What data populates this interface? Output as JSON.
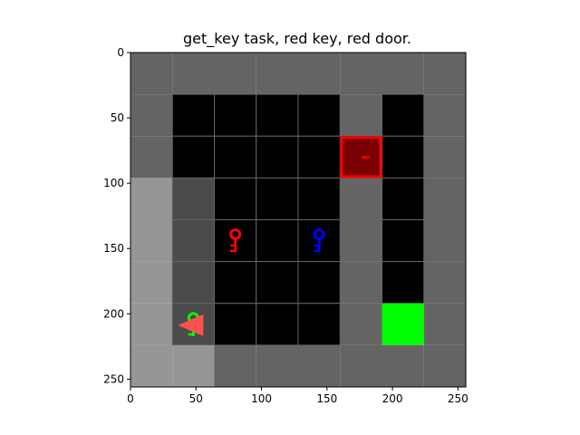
{
  "title": "get_key task, red key, red door.",
  "axes": {
    "x_ticks": [
      0,
      50,
      100,
      150,
      200,
      250
    ],
    "y_ticks": [
      0,
      50,
      100,
      150,
      200,
      250
    ],
    "xlim": [
      0,
      256
    ],
    "ylim": [
      256,
      0
    ]
  },
  "grid": {
    "cell_size": 32,
    "cols": 8,
    "rows": 8,
    "tile_colors": {
      "outer_wall": "#646464",
      "floor": "#000000",
      "visible_floor": "#4b4b4b",
      "visible_wall": "#969696",
      "grid_line": "#646464",
      "goal": "#00ff00"
    },
    "floor_cells": [
      [
        1,
        1
      ],
      [
        2,
        1
      ],
      [
        3,
        1
      ],
      [
        4,
        1
      ],
      [
        6,
        1
      ],
      [
        1,
        2
      ],
      [
        2,
        2
      ],
      [
        3,
        2
      ],
      [
        4,
        2
      ],
      [
        6,
        2
      ],
      [
        1,
        3
      ],
      [
        2,
        3
      ],
      [
        3,
        3
      ],
      [
        4,
        3
      ],
      [
        6,
        3
      ],
      [
        1,
        4
      ],
      [
        2,
        4
      ],
      [
        3,
        4
      ],
      [
        4,
        4
      ],
      [
        6,
        4
      ],
      [
        1,
        5
      ],
      [
        2,
        5
      ],
      [
        3,
        5
      ],
      [
        4,
        5
      ],
      [
        6,
        5
      ],
      [
        1,
        6
      ],
      [
        2,
        6
      ],
      [
        3,
        6
      ],
      [
        4,
        6
      ]
    ],
    "visible_floor_cells": [
      [
        1,
        3
      ],
      [
        1,
        4
      ],
      [
        1,
        5
      ],
      [
        1,
        6
      ]
    ],
    "visible_wall_cells": [
      [
        0,
        3
      ],
      [
        0,
        4
      ],
      [
        0,
        5
      ],
      [
        0,
        6
      ],
      [
        0,
        7
      ],
      [
        1,
        7
      ]
    ],
    "goal_cell": [
      6,
      6
    ]
  },
  "objects": {
    "door": {
      "color": "red",
      "fill": "#780000",
      "border": "#ff0000",
      "cell": [
        5,
        2
      ],
      "state": "locked"
    },
    "keys": [
      {
        "color": "red",
        "hex": "#ff0000",
        "cell": [
          2,
          4
        ]
      },
      {
        "color": "blue",
        "hex": "#0000ff",
        "cell": [
          4,
          4
        ]
      },
      {
        "color": "green",
        "hex": "#00ff00",
        "cell": [
          1,
          6
        ]
      }
    ],
    "agent": {
      "hex": "#ff5050",
      "cell": [
        1,
        6
      ],
      "facing": "left"
    }
  }
}
